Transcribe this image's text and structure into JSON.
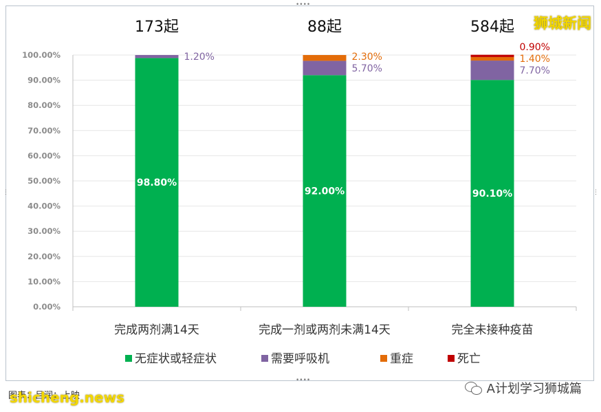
{
  "brand": "狮城新闻",
  "footer": {
    "caption": "图表：吕润；上映",
    "site": "shicheng.news",
    "account": "A计划学习狮城篇"
  },
  "chart_data": {
    "type": "bar",
    "stacked": true,
    "categories": [
      "完成两剂满14天",
      "完成一剂或两剂未满14天",
      "完全未接种疫苗"
    ],
    "totals": [
      "173起",
      "88起",
      "584起"
    ],
    "y_ticks": [
      "0.00%",
      "10.00%",
      "20.00%",
      "30.00%",
      "40.00%",
      "50.00%",
      "60.00%",
      "70.00%",
      "80.00%",
      "90.00%",
      "100.00%"
    ],
    "ylim": [
      0,
      100
    ],
    "grid": true,
    "legend_position": "bottom",
    "series": [
      {
        "name": "无症状或轻症状",
        "color": "#00b050",
        "values": [
          98.8,
          92.0,
          90.1
        ],
        "labels": [
          "98.80%",
          "92.00%",
          "90.10%"
        ]
      },
      {
        "name": "需要呼吸机",
        "color": "#8064a2",
        "values": [
          1.2,
          5.7,
          7.7
        ],
        "labels": [
          "1.20%",
          "5.70%",
          "7.70%"
        ]
      },
      {
        "name": "重症",
        "color": "#e36c09",
        "values": [
          0,
          2.3,
          1.4
        ],
        "labels": [
          "",
          "2.30%",
          "1.40%"
        ]
      },
      {
        "name": "死亡",
        "color": "#c00000",
        "values": [
          0,
          0,
          0.9
        ],
        "labels": [
          "",
          "",
          "0.90%"
        ]
      }
    ]
  }
}
